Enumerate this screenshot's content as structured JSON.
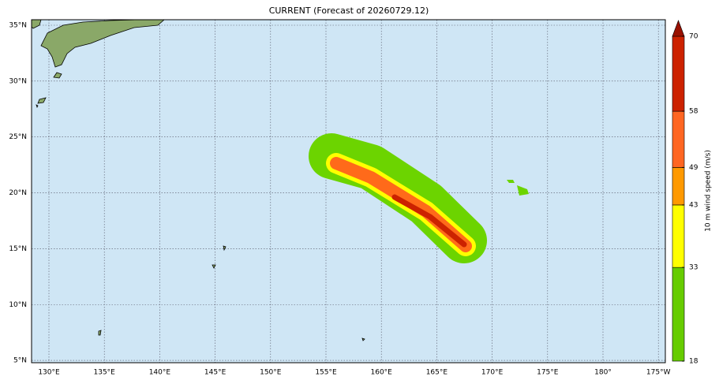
{
  "map": {
    "title": "CURRENT (Forecast of 20260729.12)",
    "lat_ticks": [
      {
        "value": 35,
        "label": "35°N"
      },
      {
        "value": 30,
        "label": "30°N"
      },
      {
        "value": 25,
        "label": "25°N"
      },
      {
        "value": 20,
        "label": "20°N"
      },
      {
        "value": 15,
        "label": "15°N"
      },
      {
        "value": 10,
        "label": "10°N"
      },
      {
        "value": 5,
        "label": "5°N"
      }
    ],
    "lon_ticks": [
      {
        "value": 130,
        "label": "130°E"
      },
      {
        "value": 135,
        "label": "135°E"
      },
      {
        "value": 140,
        "label": "140°E"
      },
      {
        "value": 145,
        "label": "145°E"
      },
      {
        "value": 150,
        "label": "150°E"
      },
      {
        "value": 155,
        "label": "155°E"
      },
      {
        "value": 160,
        "label": "160°E"
      },
      {
        "value": 165,
        "label": "165°E"
      },
      {
        "value": 170,
        "label": "170°E"
      },
      {
        "value": 175,
        "label": "175°E"
      },
      {
        "value": 180,
        "label": "180°"
      },
      {
        "value": 185,
        "label": "175°W"
      }
    ],
    "colorbar": {
      "label": "10 m wind speed (m/s)",
      "levels": [
        18,
        33,
        43,
        49,
        58,
        70
      ],
      "colors": [
        "#66cc00",
        "#ffff00",
        "#ff9900",
        "#ff6622",
        "#cc2200"
      ],
      "extend_color": "#991100"
    }
  }
}
